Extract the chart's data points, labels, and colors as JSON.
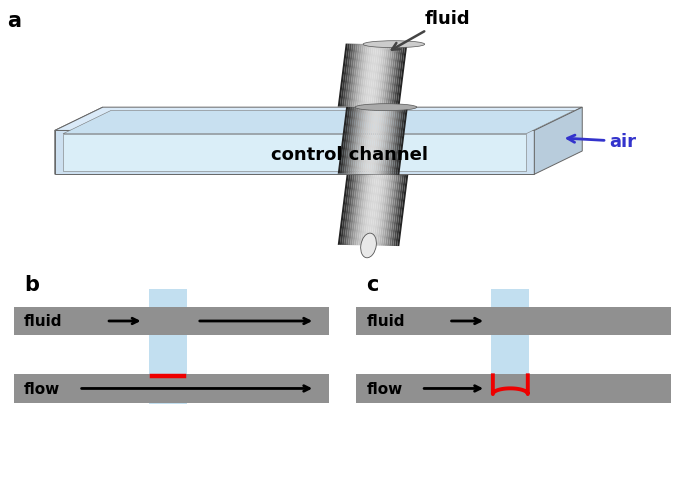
{
  "bg_color": "#ffffff",
  "gray_channel": "#909090",
  "light_blue_ctrl": "#c8dff0",
  "light_blue_top": "#daeaf8",
  "light_blue_front": "#cde0f0",
  "light_blue_right": "#b8ccdc",
  "tube_grad_dark": 0.1,
  "tube_grad_light": 0.85,
  "red_color": "#ee0000",
  "blue_arrow": "#3333cc",
  "dark_arrow": "#444444",
  "label_a": "a",
  "label_b": "b",
  "label_c": "c",
  "label_fluid": "fluid",
  "label_air": "air",
  "label_control": "control channel",
  "label_flow": "flow",
  "panel_label_fontsize": 15,
  "chan_label_fontsize": 11,
  "ctrl_label_fontsize": 13
}
